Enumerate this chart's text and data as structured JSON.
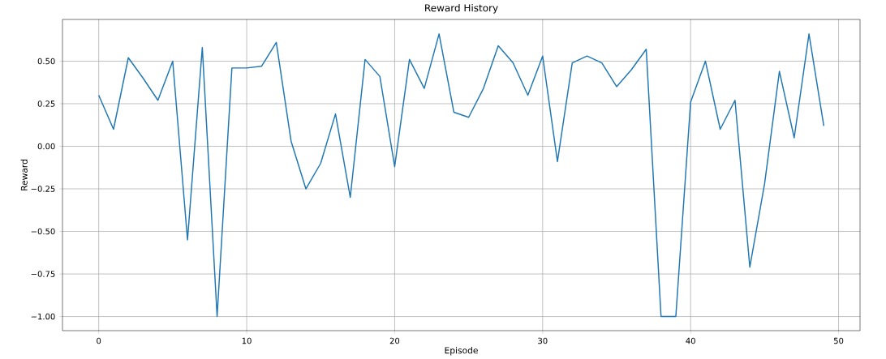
{
  "chart_data": {
    "type": "line",
    "title": "Reward History",
    "xlabel": "Episode",
    "ylabel": "Reward",
    "x": [
      0,
      1,
      2,
      3,
      4,
      5,
      6,
      7,
      8,
      9,
      10,
      11,
      12,
      13,
      14,
      15,
      16,
      17,
      18,
      19,
      20,
      21,
      22,
      23,
      24,
      25,
      26,
      27,
      28,
      29,
      30,
      31,
      32,
      33,
      34,
      35,
      36,
      37,
      38,
      39,
      40,
      41,
      42,
      43,
      44,
      45,
      46,
      47,
      48,
      49
    ],
    "series": [
      {
        "color": "#1f77b4",
        "values": [
          0.3,
          0.1,
          0.52,
          0.4,
          0.27,
          0.5,
          -0.55,
          0.58,
          -1.0,
          0.46,
          0.46,
          0.47,
          0.61,
          0.03,
          -0.25,
          -0.1,
          0.19,
          -0.3,
          0.51,
          0.41,
          -0.12,
          0.51,
          0.34,
          0.66,
          0.2,
          0.17,
          0.34,
          0.59,
          0.49,
          0.3,
          0.53,
          -0.09,
          0.49,
          0.53,
          0.49,
          0.35,
          0.45,
          0.57,
          -1.0,
          -1.0,
          0.26,
          0.5,
          0.1,
          0.27,
          -0.71,
          -0.22,
          0.44,
          0.05,
          0.66,
          0.12
        ]
      }
    ],
    "xlim": [
      -2.45,
      51.45
    ],
    "ylim": [
      -1.083,
      0.745
    ],
    "xticks": [
      0,
      10,
      20,
      30,
      40,
      50
    ],
    "yticks": [
      {
        "value": -1.0,
        "label": "−1.00"
      },
      {
        "value": -0.75,
        "label": "−0.75"
      },
      {
        "value": -0.5,
        "label": "−0.50"
      },
      {
        "value": -0.25,
        "label": "−0.25"
      },
      {
        "value": 0.0,
        "label": "0.00"
      },
      {
        "value": 0.25,
        "label": "0.25"
      },
      {
        "value": 0.5,
        "label": "0.50"
      }
    ],
    "grid": true,
    "marker": "none",
    "line_style": "solid"
  }
}
